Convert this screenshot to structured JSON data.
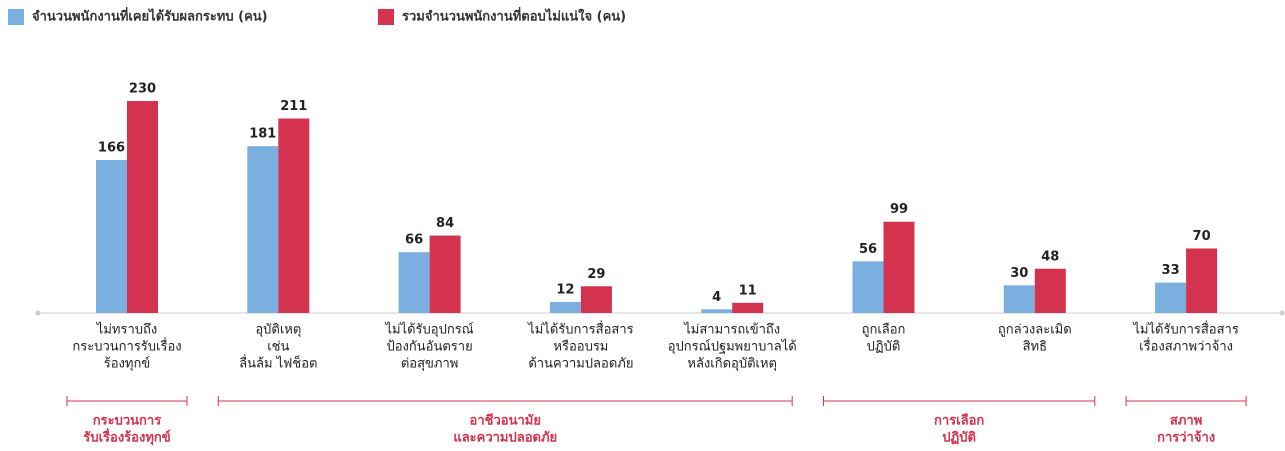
{
  "chart_data": {
    "type": "bar",
    "series": [
      {
        "name": "จำนวนพนักงานที่เคยได้รับผลกระทบ (คน)",
        "color": "#7aafe0",
        "values": [
          166,
          181,
          66,
          12,
          4,
          56,
          30,
          33
        ]
      },
      {
        "name": "รวมจำนวนพนักงานที่ตอบไม่แน่ใจ (คน)",
        "color": "#d3334f",
        "values": [
          230,
          211,
          84,
          29,
          11,
          99,
          48,
          70
        ]
      }
    ],
    "groups": [
      {
        "label": [
          "กระบวนการ",
          "รับเรื่องร้องทุกข์"
        ],
        "categories": [
          [
            "ไม่ทราบถึง",
            "กระบวนการรับเรื่อง",
            "ร้องทุกข์"
          ]
        ]
      },
      {
        "label": [
          "อาชีวอนามัย",
          "และความปลอดภัย"
        ],
        "categories": [
          [
            "อุบัติเหตุ",
            "เช่น",
            "ลื่นล้ม ไฟช็อต"
          ],
          [
            "ไม่ได้รับอุปกรณ์",
            "ป้องกันอันตราย",
            "ต่อสุขภาพ"
          ],
          [
            "ไม่ได้รับการสื่อสาร",
            "หรืออบรม",
            "ด้านความปลอดภัย"
          ],
          [
            "ไม่สามารถเข้าถึง",
            "อุปกรณ์ปฐมพยาบาลได้",
            "หลังเกิดอุบัติเหตุ"
          ]
        ]
      },
      {
        "label": [
          "การเลือก",
          "ปฏิบัติ"
        ],
        "categories": [
          [
            "ถูกเลือก",
            "ปฏิบัติ"
          ],
          [
            "ถูกล่วงละเมิด",
            "สิทธิ"
          ]
        ]
      },
      {
        "label": [
          "สภาพ",
          "การว่าจ้าง"
        ],
        "categories": [
          [
            "ไม่ได้รับการสื่อสาร",
            "เรื่องสภาพว่าจ้าง"
          ]
        ]
      }
    ]
  }
}
